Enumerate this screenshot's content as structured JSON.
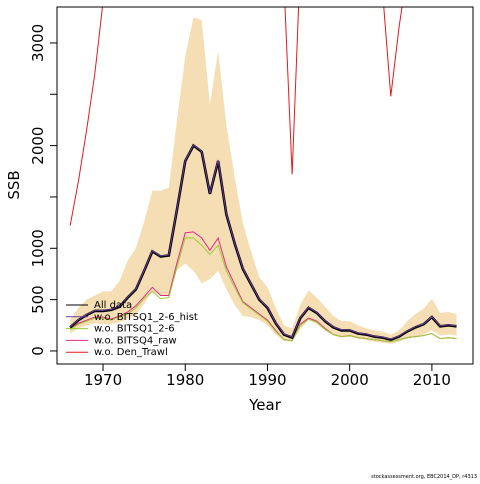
{
  "chart_data": {
    "type": "line",
    "x_label": "Year",
    "y_label": "SSB",
    "footer": "stockassessment.org, EBC2014_DP, r4313",
    "x": [
      1966,
      1967,
      1968,
      1969,
      1970,
      1971,
      1972,
      1973,
      1974,
      1975,
      1976,
      1977,
      1978,
      1979,
      1980,
      1981,
      1982,
      1983,
      1984,
      1985,
      1986,
      1987,
      1988,
      1989,
      1990,
      1991,
      1992,
      1993,
      1994,
      1995,
      1996,
      1997,
      1998,
      1999,
      2000,
      2001,
      2002,
      2003,
      2004,
      2005,
      2006,
      2007,
      2008,
      2009,
      2010,
      2011,
      2012,
      2013
    ],
    "band": {
      "color": "#f5deb3",
      "upper": [
        300,
        420,
        500,
        540,
        580,
        580,
        680,
        880,
        1000,
        1260,
        1560,
        1560,
        1590,
        2250,
        2870,
        3250,
        3220,
        2400,
        2920,
        2200,
        1700,
        1250,
        970,
        720,
        620,
        420,
        250,
        220,
        450,
        590,
        520,
        430,
        340,
        290,
        290,
        250,
        220,
        200,
        190,
        160,
        200,
        290,
        360,
        410,
        510,
        370,
        380,
        360
      ],
      "lower": [
        170,
        220,
        250,
        270,
        260,
        260,
        280,
        310,
        350,
        460,
        580,
        540,
        540,
        790,
        850,
        780,
        660,
        700,
        780,
        600,
        450,
        340,
        330,
        300,
        250,
        160,
        100,
        90,
        210,
        300,
        260,
        200,
        150,
        130,
        140,
        120,
        110,
        90,
        80,
        70,
        90,
        120,
        140,
        160,
        200,
        150,
        160,
        150
      ]
    },
    "series": [
      {
        "name": "All data",
        "color": "#000000",
        "values": [
          230,
          300,
          350,
          390,
          390,
          400,
          430,
          520,
          600,
          780,
          970,
          920,
          930,
          1380,
          1850,
          2000,
          1940,
          1530,
          1850,
          1330,
          1050,
          800,
          650,
          500,
          420,
          270,
          160,
          130,
          320,
          420,
          370,
          290,
          230,
          200,
          200,
          170,
          160,
          140,
          130,
          110,
          140,
          190,
          230,
          260,
          330,
          240,
          250,
          240
        ]
      },
      {
        "name": "w.o. BITSQ1_2-6_hist",
        "color": "#6a3d9a",
        "values": [
          235,
          305,
          355,
          395,
          395,
          405,
          435,
          525,
          605,
          785,
          975,
          925,
          935,
          1385,
          1855,
          2005,
          1945,
          1535,
          1860,
          1335,
          1055,
          805,
          655,
          505,
          425,
          275,
          165,
          135,
          325,
          425,
          375,
          295,
          235,
          205,
          205,
          175,
          165,
          145,
          135,
          115,
          145,
          195,
          235,
          265,
          335,
          245,
          255,
          245
        ]
      },
      {
        "name": "w.o. BITSQ1_2-6",
        "color": "#9acd32",
        "values": [
          210,
          260,
          290,
          320,
          320,
          300,
          330,
          360,
          420,
          510,
          580,
          510,
          520,
          820,
          1100,
          1100,
          1030,
          940,
          1030,
          780,
          620,
          470,
          410,
          350,
          290,
          190,
          110,
          100,
          250,
          310,
          280,
          210,
          160,
          140,
          150,
          130,
          120,
          110,
          100,
          90,
          110,
          130,
          140,
          150,
          170,
          120,
          130,
          120
        ]
      },
      {
        "name": "w.o. BITSQ4_raw",
        "color": "#e7298a",
        "values": [
          220,
          270,
          300,
          330,
          330,
          310,
          340,
          380,
          440,
          530,
          620,
          540,
          540,
          860,
          1150,
          1160,
          1100,
          980,
          1100,
          820,
          650,
          480,
          420,
          360,
          300,
          200,
          110,
          100,
          260,
          320,
          290,
          220,
          160,
          140,
          150,
          130,
          120,
          110,
          100,
          90,
          110,
          130,
          140,
          150,
          170,
          120,
          130,
          120
        ]
      },
      {
        "name": "w.o. Den_Trawl",
        "color": "#e41a1c",
        "values": [
          1220,
          1650,
          2150,
          2700,
          3400,
          null,
          null,
          null,
          null,
          null,
          null,
          null,
          null,
          null,
          null,
          null,
          null,
          null,
          null,
          null,
          null,
          null,
          null,
          null,
          null,
          null,
          3600,
          1720,
          3800,
          null,
          null,
          null,
          null,
          null,
          null,
          null,
          null,
          null,
          3500,
          2480,
          3150,
          3700,
          null,
          null,
          null,
          null,
          null,
          null
        ]
      }
    ],
    "xlim": [
      1964.4,
      2015.0
    ],
    "xticks": [
      1970,
      1980,
      1990,
      2000,
      2010
    ],
    "ylim": [
      -127,
      3350
    ],
    "yticks": [
      0,
      500,
      1000,
      2000,
      3000
    ],
    "yticks_unlabeled": [
      1500,
      2500
    ],
    "legend": "bottomleft"
  }
}
